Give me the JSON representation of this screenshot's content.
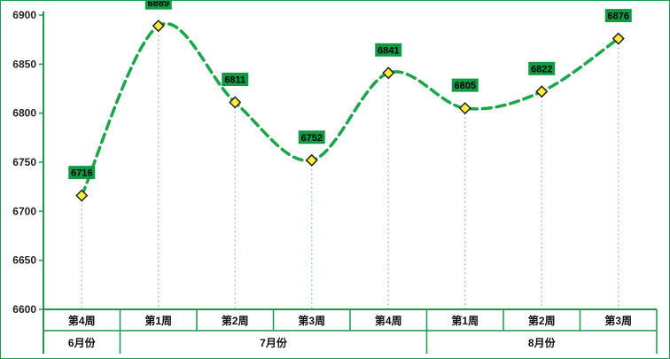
{
  "chart_data": {
    "type": "line",
    "smooth": true,
    "line_style": "dashed",
    "marker": "diamond",
    "ylim": [
      6600,
      6900
    ],
    "yticks": [
      6600,
      6650,
      6700,
      6750,
      6800,
      6850,
      6900
    ],
    "categories": [
      "第4周",
      "第1周",
      "第2周",
      "第3周",
      "第4周",
      "第1周",
      "第2周",
      "第3周"
    ],
    "groups": [
      {
        "label": "6月份",
        "count": 1
      },
      {
        "label": "7月份",
        "count": 4
      },
      {
        "label": "8月份",
        "count": 3
      }
    ],
    "values": [
      6716,
      6889,
      6811,
      6752,
      6841,
      6805,
      6822,
      6876
    ],
    "data_labels": true,
    "colors": {
      "line": "#1aa64a",
      "axis": "#1a9a4a",
      "label_bg": "#119944",
      "marker_fill": "#ffee33",
      "marker_stroke": "#222222",
      "drop_line": "#9fd8b4"
    }
  }
}
